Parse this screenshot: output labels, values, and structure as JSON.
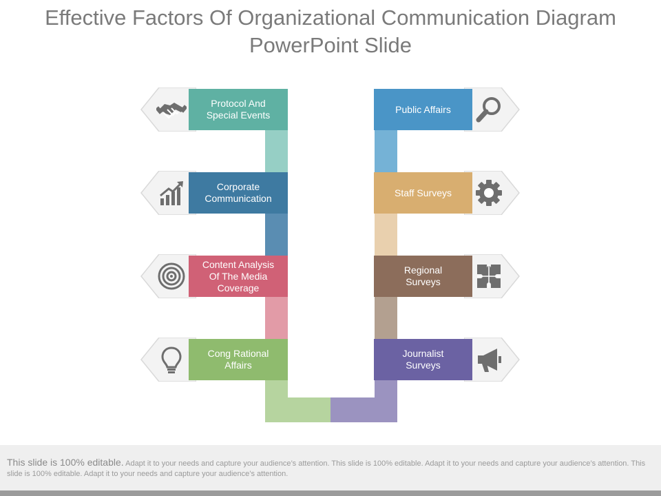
{
  "slide": {
    "title_line1": "Effective Factors Of Organizational Communication Diagram",
    "title_line2": "PowerPoint Slide"
  },
  "left_items": [
    {
      "label": "Protocol And\nSpecial Events",
      "icon": "handshake-icon",
      "color": "#5fb1a3",
      "connector_color": "#96cfc5"
    },
    {
      "label": "Corporate\nCommunication",
      "icon": "growth-chart-icon",
      "color": "#3e7aa1",
      "connector_color": "#5a8db2"
    },
    {
      "label": "Content Analysis\nOf The Media\nCoverage",
      "icon": "target-icon",
      "color": "#d06176",
      "connector_color": "#e29ba7"
    },
    {
      "label": "Cong Rational\nAffairs",
      "icon": "lightbulb-icon",
      "color": "#8fbb6e",
      "connector_color": "#b6d49f"
    }
  ],
  "right_items": [
    {
      "label": "Public Affairs",
      "icon": "magnifier-icon",
      "color": "#4a95c7",
      "connector_color": "#75b2d6"
    },
    {
      "label": "Staff Surveys",
      "icon": "gear-icon",
      "color": "#d8ae70",
      "connector_color": "#e9d0ae"
    },
    {
      "label": "Regional\nSurveys",
      "icon": "puzzle-icon",
      "color": "#8c6d5b",
      "connector_color": "#b3a090"
    },
    {
      "label": "Journalist\nSurveys",
      "icon": "megaphone-icon",
      "color": "#6b62a3",
      "connector_color": "#9b93c0"
    }
  ],
  "footer": {
    "lead": "This slide is 100% editable.",
    "body": "Adapt it to your needs and capture your audience’s attention. This slide is 100% editable. Adapt it to your needs and capture your audience’s attention. This slide is 100% editable. Adapt it to your needs and capture your audience’s attention."
  }
}
